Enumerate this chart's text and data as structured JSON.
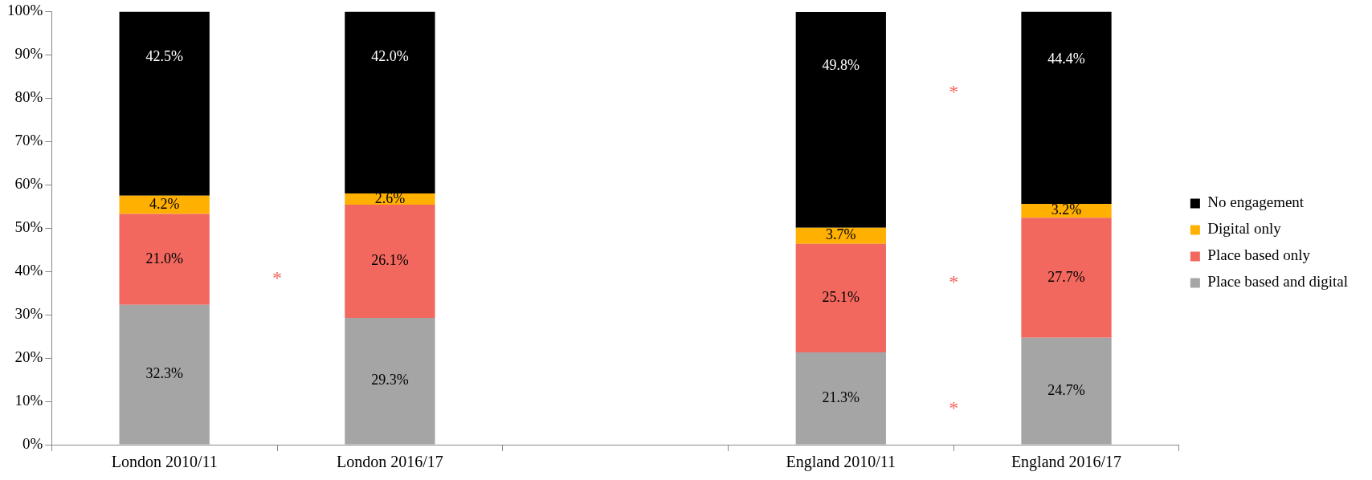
{
  "chart_data": {
    "type": "bar",
    "stacked": true,
    "categories": [
      "London 2010/11",
      "London 2016/17",
      null,
      "England 2010/11",
      "England 2016/17"
    ],
    "series": [
      {
        "name": "Place based and digital",
        "color": "#a5a5a5",
        "values": [
          32.3,
          29.3,
          null,
          21.3,
          24.7
        ],
        "value_labels": [
          "32.3%",
          "29.3%",
          null,
          "21.3%",
          "24.7%"
        ]
      },
      {
        "name": "Place based only",
        "color": "#f2685e",
        "values": [
          21.0,
          26.1,
          null,
          25.1,
          27.7
        ],
        "value_labels": [
          "21.0%",
          "26.1%",
          null,
          "25.1%",
          "27.7%"
        ]
      },
      {
        "name": "Digital only",
        "color": "#ffb000",
        "values": [
          4.2,
          2.6,
          null,
          3.7,
          3.2
        ],
        "value_labels": [
          "4.2%",
          "2.6%",
          null,
          "3.7%",
          "3.2%"
        ]
      },
      {
        "name": "No engagement",
        "color": "#000000",
        "values": [
          42.5,
          42.0,
          null,
          49.8,
          44.4
        ],
        "value_labels": [
          "42.5%",
          "42.0%",
          null,
          "49.8%",
          "44.4%"
        ]
      }
    ],
    "ylim": [
      0,
      100
    ],
    "yticks": [
      {
        "value": 0,
        "label": "0%"
      },
      {
        "value": 10,
        "label": "10%"
      },
      {
        "value": 20,
        "label": "20%"
      },
      {
        "value": 30,
        "label": "30%"
      },
      {
        "value": 40,
        "label": "40%"
      },
      {
        "value": 50,
        "label": "50%"
      },
      {
        "value": 60,
        "label": "60%"
      },
      {
        "value": 70,
        "label": "70%"
      },
      {
        "value": 80,
        "label": "80%"
      },
      {
        "value": 90,
        "label": "90%"
      },
      {
        "value": 100,
        "label": "100%"
      }
    ],
    "legend": "right",
    "annotations": [
      "*",
      "*",
      "*",
      "*"
    ]
  }
}
